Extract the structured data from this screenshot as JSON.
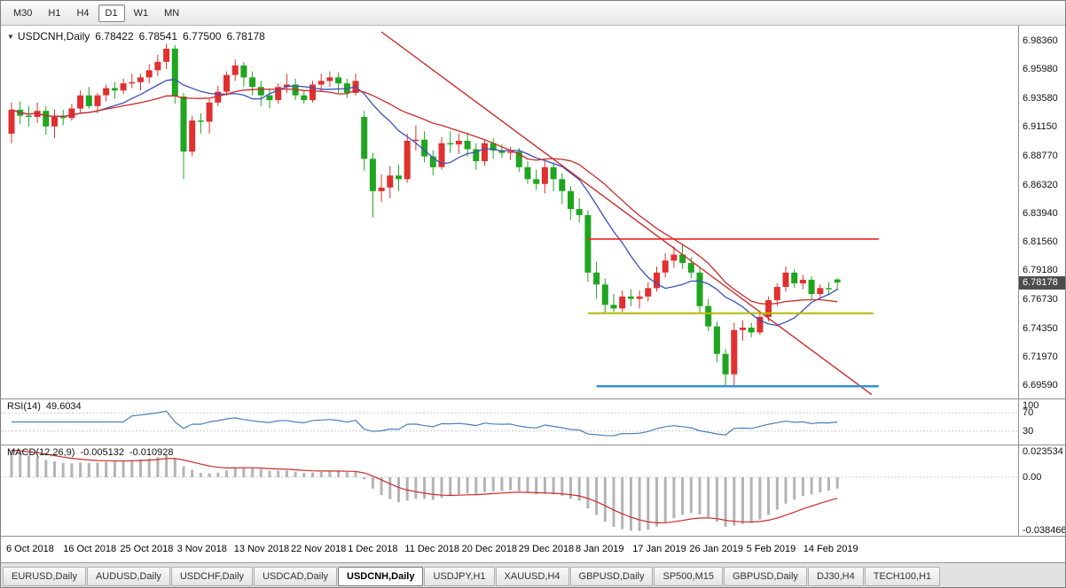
{
  "toolbar": {
    "timeframes": [
      {
        "label": "M30",
        "active": false
      },
      {
        "label": "H1",
        "active": false
      },
      {
        "label": "H4",
        "active": false
      },
      {
        "label": "D1",
        "active": true
      },
      {
        "label": "W1",
        "active": false
      },
      {
        "label": "MN",
        "active": false
      }
    ]
  },
  "main_chart": {
    "header": {
      "symbol": "USDCNH,Daily",
      "open": "6.78422",
      "high": "6.78541",
      "low": "6.77500",
      "close": "6.78178"
    },
    "price_axis_labels": [
      "6.98360",
      "6.95980",
      "6.93580",
      "6.91150",
      "6.88770",
      "6.86320",
      "6.83940",
      "6.81560",
      "6.79180",
      "6.76730",
      "6.74350",
      "6.71970",
      "6.69590"
    ],
    "current_price": "6.78178"
  },
  "rsi_panel": {
    "label": "RSI(14)",
    "value": "49.6034",
    "level_lines": [
      70,
      30
    ],
    "scale_labels": [
      {
        "value": 100,
        "text": "100"
      },
      {
        "value": 70,
        "text": "70"
      },
      {
        "value": 30,
        "text": "30"
      }
    ]
  },
  "macd_panel": {
    "label": "MACD(12,26,9)",
    "main_value": "-0.005132",
    "signal_value": "-0.010928",
    "scale_labels": [
      {
        "value": 0.023534,
        "text": "0.023534"
      },
      {
        "value": 0,
        "text": "0.00"
      },
      {
        "value": -0.038466,
        "text": "-0.038466"
      }
    ]
  },
  "time_axis": [
    "6 Oct 2018",
    "16 Oct 2018",
    "25 Oct 2018",
    "3 Nov 2018",
    "13 Nov 2018",
    "22 Nov 2018",
    "1 Dec 2018",
    "11 Dec 2018",
    "20 Dec 2018",
    "29 Dec 2018",
    "8 Jan 2019",
    "17 Jan 2019",
    "26 Jan 2019",
    "5 Feb 2019",
    "14 Feb 2019"
  ],
  "tabs": [
    {
      "label": "EURUSD,Daily",
      "active": false
    },
    {
      "label": "AUDUSD,Daily",
      "active": false
    },
    {
      "label": "USDCHF,Daily",
      "active": false
    },
    {
      "label": "USDCAD,Daily",
      "active": false
    },
    {
      "label": "USDCNH,Daily",
      "active": true
    },
    {
      "label": "USDJPY,H1",
      "active": false
    },
    {
      "label": "XAUUSD,H4",
      "active": false
    },
    {
      "label": "GBPUSD,Daily",
      "active": false
    },
    {
      "label": "SP500,M15",
      "active": false
    },
    {
      "label": "GBPUSD,Daily",
      "active": false
    },
    {
      "label": "DJ30,H4",
      "active": false
    },
    {
      "label": "TECH100,H1",
      "active": false
    }
  ],
  "colors": {
    "candle_up": "#e03030",
    "candle_down": "#1fa51f",
    "ma_fast": "#3a50bb",
    "ma_slow": "#cc2a2a",
    "trendline": "#cc2a2a",
    "resistance_line": "#f22020",
    "support_line_yellow": "#b5b900",
    "support_line_blue": "#2e8fd0",
    "rsi_line": "#4a7ebb",
    "macd_histogram": "#b4b4b4",
    "macd_signal": "#cc2a2a",
    "price_badge_bg": "#4d4d4d",
    "level_dash": "#c8c8c8"
  },
  "chart_data": {
    "type": "candlestick",
    "title": "USDCNH Daily with RSI(14) and MACD(12,26,9)",
    "price_range": {
      "top_label_price": 6.9836,
      "bottom_label_price": 6.6959
    },
    "indicators": {
      "ma_fast_period": 10,
      "ma_slow_period": 20,
      "rsi_period": 14,
      "macd": [
        12,
        26,
        9
      ]
    },
    "objects": {
      "trendline": {
        "i1": 43,
        "p1": 6.991,
        "i2": 100,
        "p2": 6.688
      },
      "hlines": [
        {
          "name": "resistance-hline",
          "price": 6.818,
          "i1": 67,
          "i2": 100.8,
          "color_key": "resistance_line",
          "width": 1.6
        },
        {
          "name": "support-hline-yellow",
          "price": 6.756,
          "i1": 67,
          "i2": 100.2,
          "color_key": "support_line_yellow",
          "width": 2
        },
        {
          "name": "support-hline-blue",
          "price": 6.695,
          "i1": 68,
          "i2": 100.8,
          "color_key": "support_line_blue",
          "width": 2.4
        }
      ]
    },
    "candles": [
      [
        "5 Oct",
        6.906,
        6.932,
        6.898,
        6.926
      ],
      [
        "8 Oct",
        6.926,
        6.933,
        6.914,
        6.921
      ],
      [
        "9 Oct",
        6.921,
        6.929,
        6.912,
        6.92
      ],
      [
        "10 Oct",
        6.92,
        6.932,
        6.915,
        6.925
      ],
      [
        "11 Oct",
        6.925,
        6.929,
        6.905,
        6.912
      ],
      [
        "12 Oct",
        6.912,
        6.926,
        6.902,
        6.92
      ],
      [
        "15 Oct",
        6.92,
        6.926,
        6.913,
        6.919
      ],
      [
        "16 Oct",
        6.919,
        6.931,
        6.917,
        6.927
      ],
      [
        "17 Oct",
        6.927,
        6.942,
        6.923,
        6.938
      ],
      [
        "18 Oct",
        6.938,
        6.945,
        6.927,
        6.929
      ],
      [
        "19 Oct",
        6.929,
        6.94,
        6.923,
        6.938
      ],
      [
        "22 Oct",
        6.938,
        6.947,
        6.933,
        6.944
      ],
      [
        "23 Oct",
        6.944,
        6.949,
        6.935,
        6.942
      ],
      [
        "24 Oct",
        6.942,
        6.952,
        6.939,
        6.948
      ],
      [
        "25 Oct",
        6.948,
        6.956,
        6.944,
        6.949
      ],
      [
        "26 Oct",
        6.949,
        6.956,
        6.942,
        6.953
      ],
      [
        "29 Oct",
        6.953,
        6.964,
        6.948,
        6.959
      ],
      [
        "30 Oct",
        6.959,
        6.972,
        6.954,
        6.966
      ],
      [
        "31 Oct",
        6.966,
        6.981,
        6.96,
        6.977
      ],
      [
        "1 Nov",
        6.977,
        6.98,
        6.931,
        6.937
      ],
      [
        "2 Nov",
        6.937,
        6.94,
        6.868,
        6.891
      ],
      [
        "5 Nov",
        6.891,
        6.921,
        6.887,
        6.917
      ],
      [
        "6 Nov",
        6.917,
        6.923,
        6.906,
        6.916
      ],
      [
        "7 Nov",
        6.916,
        6.935,
        6.906,
        6.932
      ],
      [
        "8 Nov",
        6.932,
        6.946,
        6.929,
        6.941
      ],
      [
        "9 Nov",
        6.941,
        6.958,
        6.938,
        6.955
      ],
      [
        "12 Nov",
        6.955,
        6.968,
        6.95,
        6.963
      ],
      [
        "13 Nov",
        6.963,
        6.966,
        6.945,
        6.953
      ],
      [
        "14 Nov",
        6.953,
        6.958,
        6.938,
        6.945
      ],
      [
        "15 Nov",
        6.945,
        6.95,
        6.929,
        6.938
      ],
      [
        "16 Nov",
        6.938,
        6.944,
        6.927,
        6.934
      ],
      [
        "19 Nov",
        6.934,
        6.948,
        6.931,
        6.945
      ],
      [
        "20 Nov",
        6.945,
        6.956,
        6.94,
        6.947
      ],
      [
        "21 Nov",
        6.947,
        6.952,
        6.934,
        6.938
      ],
      [
        "22 Nov",
        6.938,
        6.942,
        6.931,
        6.934
      ],
      [
        "23 Nov",
        6.934,
        6.95,
        6.932,
        6.947
      ],
      [
        "26 Nov",
        6.947,
        6.956,
        6.941,
        6.95
      ],
      [
        "27 Nov",
        6.95,
        6.958,
        6.945,
        6.953
      ],
      [
        "28 Nov",
        6.953,
        6.957,
        6.94,
        6.948
      ],
      [
        "29 Nov",
        6.948,
        6.952,
        6.936,
        6.94
      ],
      [
        "30 Nov",
        6.94,
        6.956,
        6.938,
        6.95
      ],
      [
        "3 Dec",
        6.92,
        6.925,
        6.875,
        6.885
      ],
      [
        "4 Dec",
        6.885,
        6.89,
        6.836,
        6.858
      ],
      [
        "5 Dec",
        6.858,
        6.872,
        6.849,
        6.861
      ],
      [
        "6 Dec",
        6.861,
        6.879,
        6.852,
        6.871
      ],
      [
        "7 Dec",
        6.871,
        6.88,
        6.858,
        6.868
      ],
      [
        "10 Dec",
        6.868,
        6.906,
        6.865,
        6.9
      ],
      [
        "11 Dec",
        6.9,
        6.913,
        6.892,
        6.901
      ],
      [
        "12 Dec",
        6.901,
        6.908,
        6.882,
        6.887
      ],
      [
        "13 Dec",
        6.887,
        6.892,
        6.871,
        6.878
      ],
      [
        "14 Dec",
        6.878,
        6.903,
        6.876,
        6.898
      ],
      [
        "17 Dec",
        6.898,
        6.908,
        6.89,
        6.897
      ],
      [
        "18 Dec",
        6.897,
        6.906,
        6.889,
        6.9
      ],
      [
        "19 Dec",
        6.9,
        6.907,
        6.887,
        6.893
      ],
      [
        "20 Dec",
        6.893,
        6.898,
        6.876,
        6.883
      ],
      [
        "21 Dec",
        6.883,
        6.901,
        6.879,
        6.898
      ],
      [
        "24 Dec",
        6.898,
        6.902,
        6.885,
        6.892
      ],
      [
        "25 Dec",
        6.892,
        6.897,
        6.886,
        6.89
      ],
      [
        "26 Dec",
        6.89,
        6.895,
        6.884,
        6.891
      ],
      [
        "27 Dec",
        6.891,
        6.894,
        6.874,
        6.878
      ],
      [
        "28 Dec",
        6.878,
        6.883,
        6.864,
        6.868
      ],
      [
        "31 Dec",
        6.868,
        6.876,
        6.859,
        6.864
      ],
      [
        "2 Jan",
        6.864,
        6.883,
        6.856,
        6.878
      ],
      [
        "3 Jan",
        6.878,
        6.882,
        6.858,
        6.868
      ],
      [
        "4 Jan",
        6.868,
        6.873,
        6.847,
        6.858
      ],
      [
        "7 Jan",
        6.858,
        6.862,
        6.834,
        6.843
      ],
      [
        "8 Jan",
        6.843,
        6.852,
        6.832,
        6.838
      ],
      [
        "9 Jan",
        6.838,
        6.842,
        6.782,
        6.79
      ],
      [
        "10 Jan",
        6.79,
        6.799,
        6.768,
        6.78
      ],
      [
        "11 Jan",
        6.78,
        6.785,
        6.756,
        6.763
      ],
      [
        "14 Jan",
        6.763,
        6.772,
        6.757,
        6.76
      ],
      [
        "15 Jan",
        6.76,
        6.775,
        6.757,
        6.77
      ],
      [
        "16 Jan",
        6.77,
        6.776,
        6.762,
        6.768
      ],
      [
        "17 Jan",
        6.768,
        6.775,
        6.76,
        6.77
      ],
      [
        "18 Jan",
        6.77,
        6.782,
        6.766,
        6.777
      ],
      [
        "21 Jan",
        6.777,
        6.795,
        6.774,
        6.79
      ],
      [
        "22 Jan",
        6.79,
        6.806,
        6.786,
        6.8
      ],
      [
        "23 Jan",
        6.8,
        6.812,
        6.794,
        6.805
      ],
      [
        "24 Jan",
        6.805,
        6.814,
        6.793,
        6.798
      ],
      [
        "25 Jan",
        6.798,
        6.803,
        6.785,
        6.79
      ],
      [
        "28 Jan",
        6.79,
        6.794,
        6.756,
        6.762
      ],
      [
        "29 Jan",
        6.762,
        6.768,
        6.741,
        6.745
      ],
      [
        "30 Jan",
        6.745,
        6.749,
        6.715,
        6.722
      ],
      [
        "31 Jan",
        6.722,
        6.726,
        6.696,
        6.705
      ],
      [
        "1 Feb",
        6.705,
        6.748,
        6.695,
        6.742
      ],
      [
        "4 Feb",
        6.742,
        6.75,
        6.733,
        6.744
      ],
      [
        "5 Feb",
        6.744,
        6.748,
        6.736,
        6.74
      ],
      [
        "6 Feb",
        6.74,
        6.756,
        6.738,
        6.753
      ],
      [
        "7 Feb",
        6.753,
        6.77,
        6.749,
        6.767
      ],
      [
        "8 Feb",
        6.767,
        6.781,
        6.762,
        6.778
      ],
      [
        "11 Feb",
        6.778,
        6.795,
        6.774,
        6.79
      ],
      [
        "12 Feb",
        6.79,
        6.793,
        6.777,
        6.781
      ],
      [
        "13 Feb",
        6.781,
        6.788,
        6.776,
        6.784
      ],
      [
        "14 Feb",
        6.784,
        6.787,
        6.767,
        6.772
      ],
      [
        "15 Feb",
        6.772,
        6.78,
        6.768,
        6.777
      ],
      [
        "18 Feb",
        6.777,
        6.782,
        6.771,
        6.776
      ],
      [
        "19 Feb",
        6.78422,
        6.78541,
        6.775,
        6.78178
      ]
    ]
  }
}
